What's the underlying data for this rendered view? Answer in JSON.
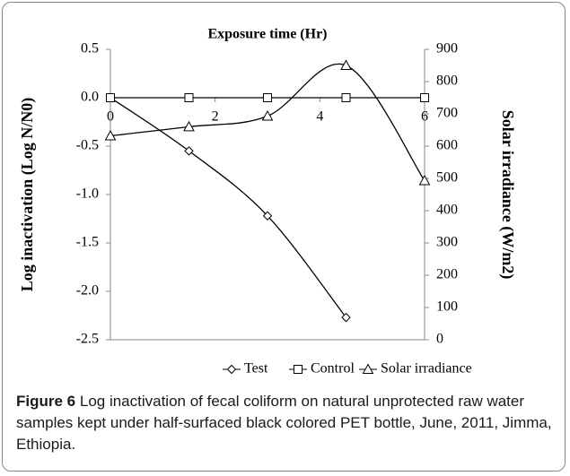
{
  "chart_data": {
    "type": "line",
    "title": "Exposure time (Hr)",
    "y_label": "Log inactivation (Log N/N0)",
    "y2_label": "Solar irradiance (W/m2)",
    "x": [
      0,
      1.5,
      3,
      4.5,
      6
    ],
    "xlim": [
      0,
      6
    ],
    "xticks": [
      0,
      2,
      4,
      6
    ],
    "ylim": [
      -2.5,
      0.5
    ],
    "yticks": [
      0.5,
      {
        "value": 0,
        "label": "0.0"
      },
      -0.5,
      {
        "value": -1,
        "label": "-1.0"
      },
      -1.5,
      {
        "value": -2,
        "label": "-2.0"
      },
      -2.5
    ],
    "y2lim": [
      0,
      900
    ],
    "y2ticks": [
      0,
      100,
      200,
      300,
      400,
      500,
      600,
      700,
      800,
      900
    ],
    "series": [
      {
        "name": "Test",
        "color": "#000000",
        "marker": "diamond",
        "values": [
          0,
          -0.55,
          -1.22,
          -2.27,
          null
        ]
      },
      {
        "name": "Control",
        "color": "#000000",
        "marker": "square",
        "values": [
          0,
          0,
          0,
          0,
          0
        ]
      },
      {
        "name": "Solar irradiance",
        "color": "#000000",
        "marker": "triangle",
        "axis": "y2",
        "values": [
          632,
          660,
          693,
          850,
          493
        ]
      }
    ],
    "legend": "bottom",
    "caption": {
      "label": "Figure 6",
      "text": "Log inactivation of fecal coliform on natural unprotected raw water samples kept under half-surfaced black colored PET bottle, June, 2011, Jimma, Ethiopia."
    }
  }
}
